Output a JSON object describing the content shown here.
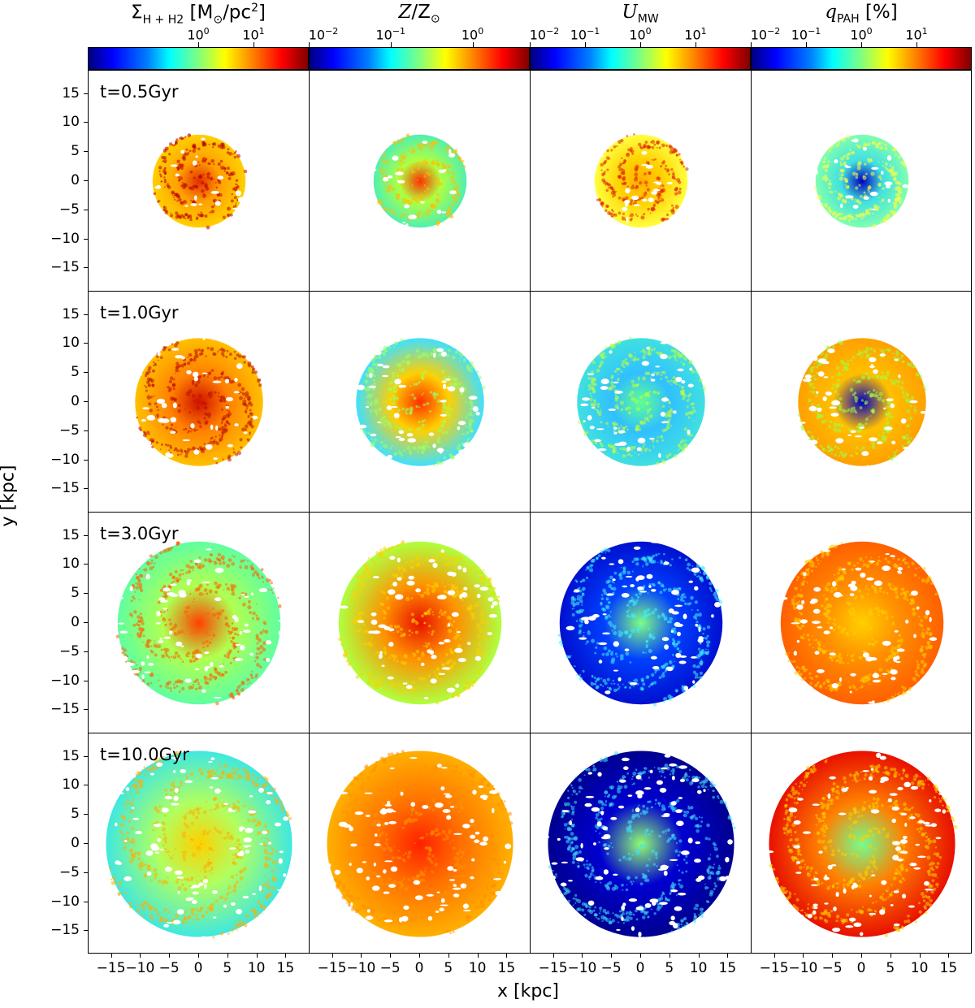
{
  "chart_data": {
    "type": "heatmap",
    "layout": "4x4 grid of face-on galaxy maps",
    "xlabel": "x [kpc]",
    "ylabel": "y [kpc]",
    "xlim": [
      -19,
      19
    ],
    "ylim": [
      -19,
      19
    ],
    "xticks": [
      -15,
      -10,
      -5,
      0,
      5,
      10,
      15
    ],
    "yticks": [
      15,
      10,
      5,
      0,
      -5,
      -10,
      -15
    ],
    "xtick_labels": [
      "−15",
      "−10",
      "−5",
      "0",
      "5",
      "10",
      "15"
    ],
    "ytick_labels": [
      "15",
      "10",
      "5",
      "0",
      "−5",
      "−10",
      "−15"
    ],
    "colormap": "jet",
    "columns": [
      {
        "quantity": "Sigma_H+H2",
        "title_sym": "Σ",
        "title_sub": "H + H",
        "title_sub2": "2",
        "title_unit": " [M",
        "title_unit_sub": "⊙",
        "title_unit_end": "/pc",
        "title_unit_sup": "2",
        "title_close": "]",
        "scale": "log",
        "range": [
          0.01,
          100
        ],
        "tick_labels": [
          {
            "base": "10",
            "exp": "0",
            "logval": 0
          },
          {
            "base": "10",
            "exp": "1",
            "logval": 1
          }
        ]
      },
      {
        "quantity": "Z/Z_sun",
        "title_sym": "Z",
        "title_rest": "/Z",
        "title_unit_sub": "⊙",
        "scale": "log",
        "range": [
          0.01,
          5
        ],
        "tick_labels": [
          {
            "base": "10",
            "exp": "−2",
            "logval": -2
          },
          {
            "base": "10",
            "exp": "−1",
            "logval": -1
          },
          {
            "base": "10",
            "exp": "0",
            "logval": 0
          }
        ]
      },
      {
        "quantity": "U_MW",
        "title_sym": "U",
        "title_sub": "MW",
        "scale": "log",
        "range": [
          0.01,
          100
        ],
        "tick_labels": [
          {
            "base": "10",
            "exp": "−2",
            "logval": -2
          },
          {
            "base": "10",
            "exp": "−1",
            "logval": -1
          },
          {
            "base": "10",
            "exp": "0",
            "logval": 0
          },
          {
            "base": "10",
            "exp": "1",
            "logval": 1
          }
        ]
      },
      {
        "quantity": "q_PAH",
        "title_sym": "q",
        "title_sub": "PAH",
        "title_unit": " [%]",
        "scale": "log",
        "range": [
          0.01,
          100
        ],
        "tick_labels": [
          {
            "base": "10",
            "exp": "−2",
            "logval": -2
          },
          {
            "base": "10",
            "exp": "−1",
            "logval": -1
          },
          {
            "base": "10",
            "exp": "0",
            "logval": 0
          },
          {
            "base": "10",
            "exp": "1",
            "logval": 1
          }
        ]
      }
    ],
    "rows": [
      {
        "label": "t=0.5Gyr",
        "radius_kpc": 8,
        "maps": [
          {
            "center": "#e03000",
            "mid": "#ffa000",
            "edge": "#ffd000",
            "spots": "#c00000"
          },
          {
            "center": "#ff3000",
            "mid": "#b0ff40",
            "edge": "#50f0b0",
            "spots": "#ffc000"
          },
          {
            "center": "#ffb000",
            "mid": "#ffd000",
            "edge": "#ffff40",
            "spots": "#e02000"
          },
          {
            "center": "#0000c0",
            "mid": "#40e0e0",
            "edge": "#80ffb0",
            "spots": "#ffff40"
          }
        ]
      },
      {
        "label": "t=1.0Gyr",
        "radius_kpc": 11,
        "maps": [
          {
            "center": "#d01000",
            "mid": "#ff8000",
            "edge": "#ffc000",
            "spots": "#c01000"
          },
          {
            "center": "#ff3000",
            "mid": "#ffd000",
            "edge": "#40e0ff",
            "spots": "#a0ff60"
          },
          {
            "center": "#60ff90",
            "mid": "#30c0ff",
            "edge": "#40e0e0",
            "spots": "#c0ff40"
          },
          {
            "center": "#0000c0",
            "mid": "#ffc000",
            "edge": "#ffa000",
            "spots": "#a0ff40"
          }
        ]
      },
      {
        "label": "t=3.0Gyr",
        "radius_kpc": 14,
        "maps": [
          {
            "center": "#ff4000",
            "mid": "#b0ff50",
            "edge": "#60ffa0",
            "spots": "#ff6000"
          },
          {
            "center": "#e81000",
            "mid": "#ff9000",
            "edge": "#b0ff40",
            "spots": "#ffd000"
          },
          {
            "center": "#80ff80",
            "mid": "#0040ff",
            "edge": "#0010d0",
            "spots": "#40f0ff"
          },
          {
            "center": "#ffd000",
            "mid": "#ff9000",
            "edge": "#ff6000",
            "spots": "#ffd000"
          }
        ]
      },
      {
        "label": "t=10.0Gyr",
        "radius_kpc": 16,
        "maps": [
          {
            "center": "#ffd000",
            "mid": "#b0ff60",
            "edge": "#40e8e0",
            "spots": "#ffb000"
          },
          {
            "center": "#ff2000",
            "mid": "#ff7000",
            "edge": "#ffb000",
            "spots": "#ff9000"
          },
          {
            "center": "#90ff70",
            "mid": "#0000d0",
            "edge": "#000090",
            "spots": "#40e0ff"
          },
          {
            "center": "#70ff90",
            "mid": "#ff8000",
            "edge": "#e81000",
            "spots": "#ffd000"
          }
        ]
      }
    ]
  }
}
